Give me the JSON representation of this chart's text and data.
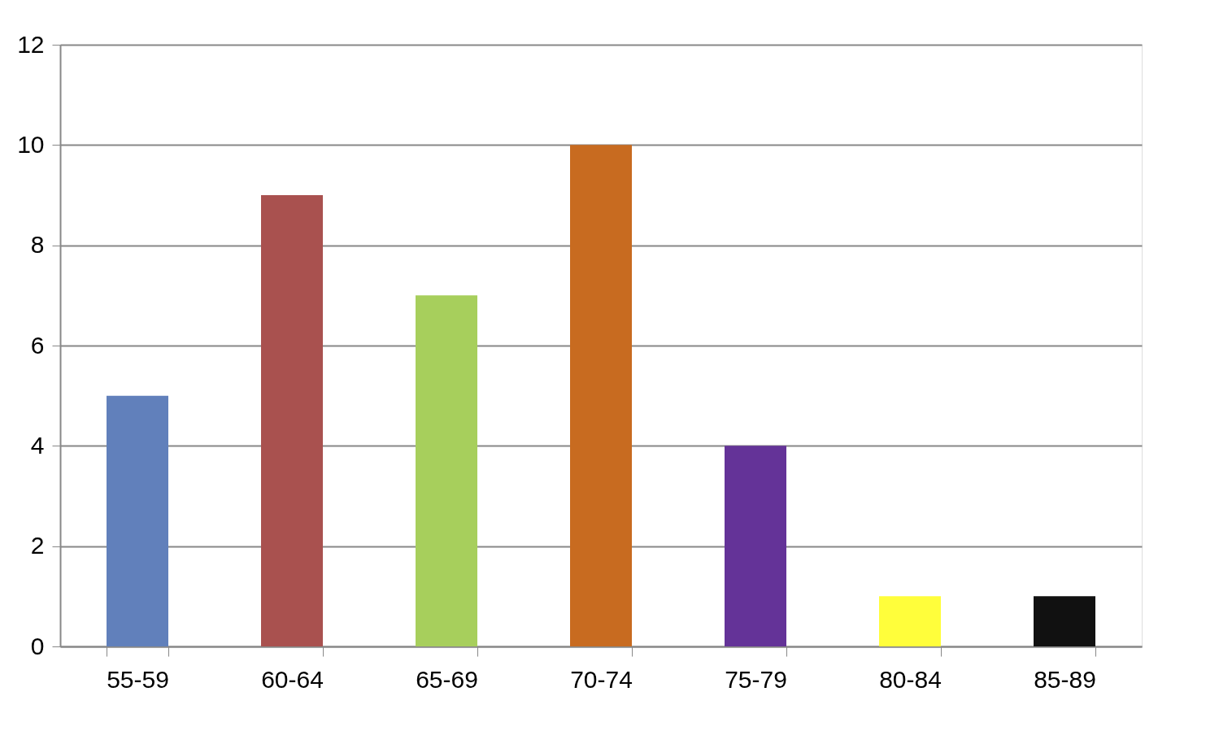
{
  "chart_data": {
    "type": "bar",
    "categories": [
      "55-59",
      "60-64",
      "65-69",
      "70-74",
      "75-79",
      "80-84",
      "85-89"
    ],
    "values": [
      5,
      9,
      7,
      10,
      4,
      1,
      1
    ],
    "colors": [
      "#6180bb",
      "#a9514f",
      "#a7cf5c",
      "#c86b20",
      "#643398",
      "#fffe3b",
      "#111111"
    ],
    "ylim": [
      0,
      12
    ],
    "yticks": [
      0,
      2,
      4,
      6,
      8,
      10,
      12
    ],
    "grid": "y"
  }
}
